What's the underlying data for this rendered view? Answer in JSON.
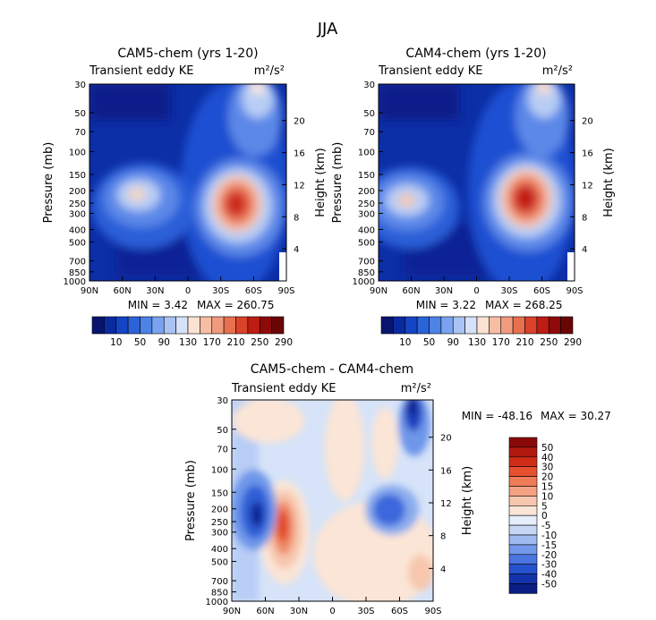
{
  "page_title": "JJA",
  "chart_data": [
    {
      "type": "heatmap",
      "title": "CAM5-chem (yrs 1-20)",
      "subtitle_left": "Transient eddy KE",
      "units": "m²/s²",
      "xlabel": "",
      "ylabel": "Pressure (mb)",
      "ylabel_right": "Height (km)",
      "x_ticks": [
        "90N",
        "60N",
        "30N",
        "0",
        "30S",
        "60S",
        "90S"
      ],
      "y_ticks": [
        30,
        50,
        70,
        100,
        150,
        200,
        250,
        300,
        400,
        500,
        700,
        850,
        1000
      ],
      "y_right_ticks": [
        20,
        16,
        12,
        8,
        4
      ],
      "min_label": "MIN =    3.42",
      "max_label": "MAX = 260.75",
      "colorbar": [
        10,
        50,
        90,
        130,
        170,
        210,
        250,
        290
      ],
      "features": [
        {
          "lat": -48,
          "p": 270,
          "value": 255
        },
        {
          "lat": -44,
          "p": 250,
          "value": 170
        },
        {
          "lat": 55,
          "p": 210,
          "value": 150
        },
        {
          "lat": -65,
          "p": 35,
          "value": 130
        },
        {
          "lat": -58,
          "p": 90,
          "value": 100
        }
      ]
    },
    {
      "type": "heatmap",
      "title": "CAM4-chem (yrs 1-20)",
      "subtitle_left": "Transient eddy KE",
      "units": "m²/s²",
      "xlabel": "",
      "ylabel": "Pressure (mb)",
      "ylabel_right": "Height (km)",
      "x_ticks": [
        "90N",
        "60N",
        "30N",
        "0",
        "30S",
        "60S",
        "90S"
      ],
      "y_ticks": [
        30,
        50,
        70,
        100,
        150,
        200,
        250,
        300,
        400,
        500,
        700,
        850,
        1000
      ],
      "y_right_ticks": [
        20,
        16,
        12,
        8,
        4
      ],
      "min_label": "MIN =    3.22",
      "max_label": "MAX = 268.25",
      "colorbar": [
        10,
        50,
        90,
        130,
        170,
        210,
        250,
        290
      ],
      "features": [
        {
          "lat": -48,
          "p": 260,
          "value": 265
        },
        {
          "lat": -44,
          "p": 240,
          "value": 180
        },
        {
          "lat": 58,
          "p": 230,
          "value": 160
        },
        {
          "lat": -65,
          "p": 35,
          "value": 140
        },
        {
          "lat": -58,
          "p": 90,
          "value": 100
        }
      ]
    },
    {
      "type": "heatmap",
      "title": "CAM5-chem - CAM4-chem",
      "subtitle_left": "Transient eddy KE",
      "units": "m²/s²",
      "xlabel": "",
      "ylabel": "Pressure (mb)",
      "ylabel_right": "Height (km)",
      "x_ticks": [
        "90N",
        "60N",
        "30N",
        "0",
        "30S",
        "60S",
        "90S"
      ],
      "y_ticks": [
        30,
        50,
        70,
        100,
        150,
        200,
        250,
        300,
        400,
        500,
        700,
        850,
        1000
      ],
      "y_right_ticks": [
        20,
        16,
        12,
        8,
        4
      ],
      "min_label": "MIN = -48.16",
      "max_label": "MAX =  30.27",
      "colorbar": [
        50,
        40,
        30,
        20,
        15,
        10,
        5,
        0,
        -5,
        -10,
        -15,
        -20,
        -30,
        -40,
        -50
      ],
      "features": [
        {
          "lat": 42,
          "p": 280,
          "value": 30
        },
        {
          "lat": -72,
          "p": 35,
          "value": -48
        },
        {
          "lat": 70,
          "p": 210,
          "value": -30
        },
        {
          "lat": -55,
          "p": 200,
          "value": -25
        },
        {
          "lat": -50,
          "p": 60,
          "value": -10
        }
      ]
    }
  ]
}
